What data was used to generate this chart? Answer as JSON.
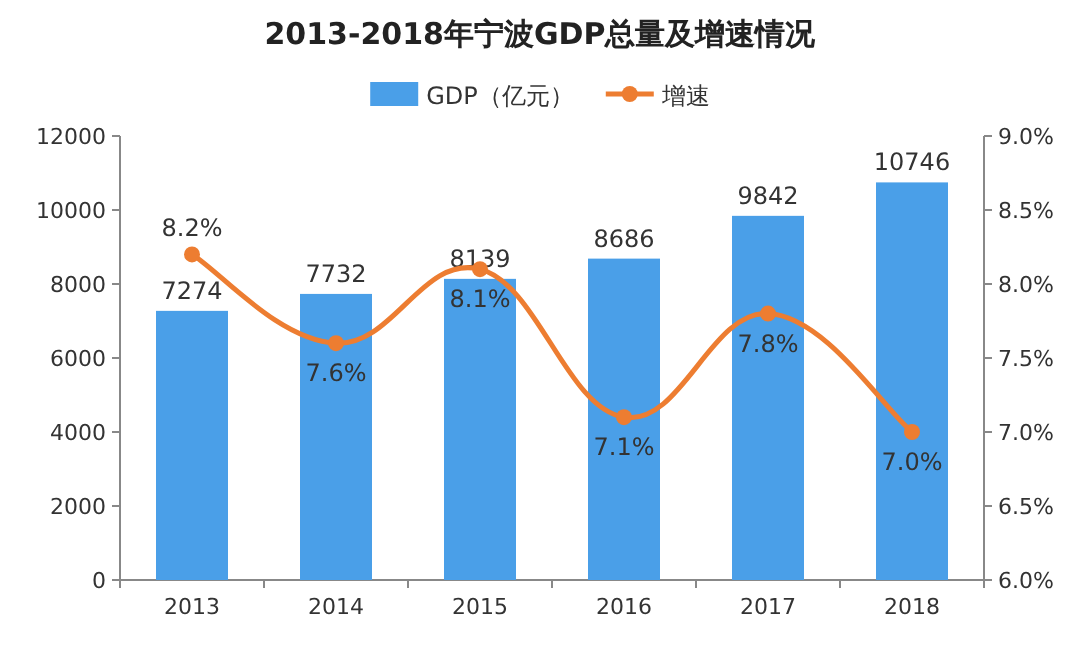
{
  "chart_data": {
    "type": "bar",
    "title": "2013-2018年宁波GDP总量及增速情况",
    "categories": [
      "2013",
      "2014",
      "2015",
      "2016",
      "2017",
      "2018"
    ],
    "series": [
      {
        "name": "GDP（亿元）",
        "color": "#4a9fe8",
        "values": [
          7274,
          7732,
          8139,
          8686,
          9842,
          10746
        ],
        "value_labels": [
          "7274",
          "7732",
          "8139",
          "8686",
          "9842",
          "10746"
        ]
      },
      {
        "name": "增速",
        "type": "line",
        "axis": "y2",
        "color": "#ed7d31",
        "marker": "circle",
        "values": [
          8.2,
          7.6,
          8.1,
          7.1,
          7.8,
          7.0
        ],
        "value_labels": [
          "8.2%",
          "7.6%",
          "8.1%",
          "7.1%",
          "7.8%",
          "7.0%"
        ]
      }
    ],
    "ylim": [
      0,
      12000
    ],
    "yticks": [
      0,
      2000,
      4000,
      6000,
      8000,
      10000,
      12000
    ],
    "y2lim": [
      6,
      9
    ],
    "y2ticks": [
      {
        "value": 6,
        "label": "6.0%"
      },
      {
        "value": 6.5,
        "label": "6.5%"
      },
      {
        "value": 7,
        "label": "7.0%"
      },
      {
        "value": 7.5,
        "label": "7.5%"
      },
      {
        "value": 8,
        "label": "8.0%"
      },
      {
        "value": 8.5,
        "label": "8.5%"
      },
      {
        "value": 9,
        "label": "9.0%"
      }
    ],
    "legend": "top",
    "grid": false
  }
}
